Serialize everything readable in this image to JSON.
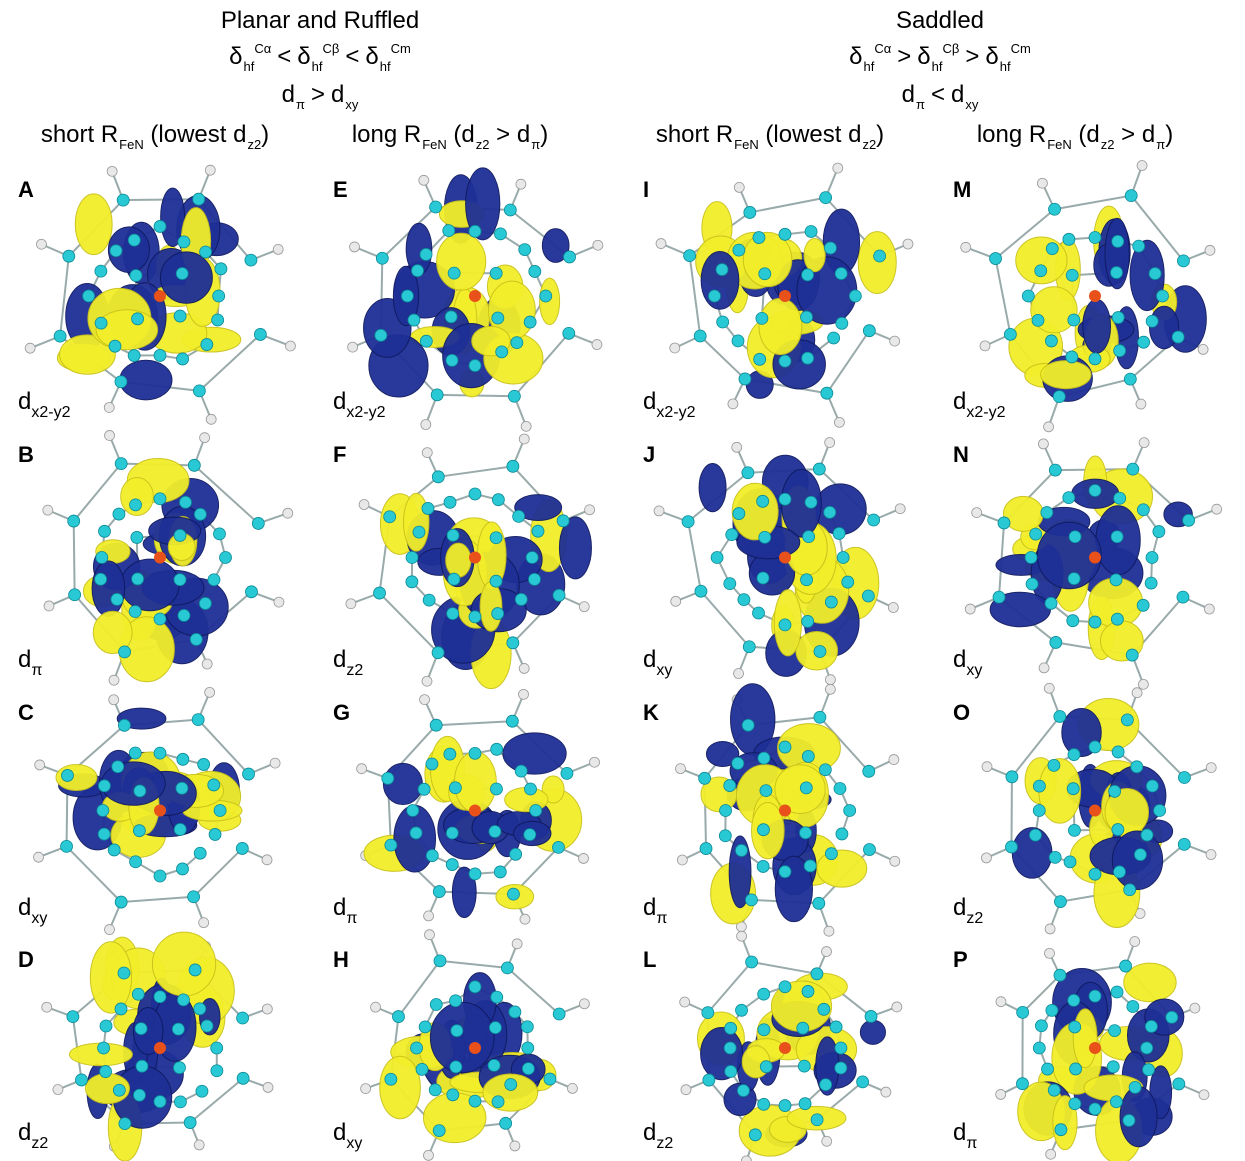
{
  "groups": [
    {
      "title": "Planar and Ruffled",
      "shift_order": [
        {
          "symbol": "δ",
          "sub": "hf",
          "sup": "Cα"
        },
        {
          "relation": "<"
        },
        {
          "symbol": "δ",
          "sub": "hf",
          "sup": "Cβ"
        },
        {
          "relation": "<"
        },
        {
          "symbol": "δ",
          "sub": "hf",
          "sup": "Cm"
        }
      ],
      "orbital_order": [
        {
          "symbol": "d",
          "sub": "π"
        },
        {
          "relation": ">"
        },
        {
          "symbol": "d",
          "sub": "xy"
        }
      ]
    },
    {
      "title": "Saddled",
      "shift_order": [
        {
          "symbol": "δ",
          "sub": "hf",
          "sup": "Cα"
        },
        {
          "relation": ">"
        },
        {
          "symbol": "δ",
          "sub": "hf",
          "sup": "Cβ"
        },
        {
          "relation": ">"
        },
        {
          "symbol": "δ",
          "sub": "hf",
          "sup": "Cm"
        }
      ],
      "orbital_order": [
        {
          "symbol": "d",
          "sub": "π"
        },
        {
          "relation": "<"
        },
        {
          "symbol": "d",
          "sub": "xy"
        }
      ]
    }
  ],
  "columns": [
    {
      "heading": [
        {
          "text": "short R"
        },
        {
          "sub": "FeN"
        },
        {
          "text": " (lowest d"
        },
        {
          "sub": "z2"
        },
        {
          "text": ")"
        }
      ]
    },
    {
      "heading": [
        {
          "text": "long R"
        },
        {
          "sub": "FeN"
        },
        {
          "text": " (d"
        },
        {
          "sub": "z2"
        },
        {
          "text": " > d"
        },
        {
          "sub": "π"
        },
        {
          "text": ")"
        }
      ]
    },
    {
      "heading": [
        {
          "text": "short R"
        },
        {
          "sub": "FeN"
        },
        {
          "text": " (lowest d"
        },
        {
          "sub": "z2"
        },
        {
          "text": ")"
        }
      ]
    },
    {
      "heading": [
        {
          "text": "long R"
        },
        {
          "sub": "FeN"
        },
        {
          "text": " (d"
        },
        {
          "sub": "z2"
        },
        {
          "text": " > d"
        },
        {
          "sub": "π"
        },
        {
          "text": ")"
        }
      ]
    }
  ],
  "panels": [
    {
      "letter": "A",
      "orbital": {
        "symbol": "d",
        "sub": "x2-y2"
      }
    },
    {
      "letter": "B",
      "orbital": {
        "symbol": "d",
        "sub": "π"
      }
    },
    {
      "letter": "C",
      "orbital": {
        "symbol": "d",
        "sub": "xy"
      }
    },
    {
      "letter": "D",
      "orbital": {
        "symbol": "d",
        "sub": "z2"
      }
    },
    {
      "letter": "E",
      "orbital": {
        "symbol": "d",
        "sub": "x2-y2"
      }
    },
    {
      "letter": "F",
      "orbital": {
        "symbol": "d",
        "sub": "z2"
      }
    },
    {
      "letter": "G",
      "orbital": {
        "symbol": "d",
        "sub": "π"
      }
    },
    {
      "letter": "H",
      "orbital": {
        "symbol": "d",
        "sub": "xy"
      }
    },
    {
      "letter": "I",
      "orbital": {
        "symbol": "d",
        "sub": "x2-y2"
      }
    },
    {
      "letter": "J",
      "orbital": {
        "symbol": "d",
        "sub": "xy"
      }
    },
    {
      "letter": "K",
      "orbital": {
        "symbol": "d",
        "sub": "π"
      }
    },
    {
      "letter": "L",
      "orbital": {
        "symbol": "d",
        "sub": "z2"
      }
    },
    {
      "letter": "M",
      "orbital": {
        "symbol": "d",
        "sub": "x2-y2"
      }
    },
    {
      "letter": "N",
      "orbital": {
        "symbol": "d",
        "sub": "xy"
      }
    },
    {
      "letter": "O",
      "orbital": {
        "symbol": "d",
        "sub": "z2"
      }
    },
    {
      "letter": "P",
      "orbital": {
        "symbol": "d",
        "sub": "π"
      }
    }
  ]
}
